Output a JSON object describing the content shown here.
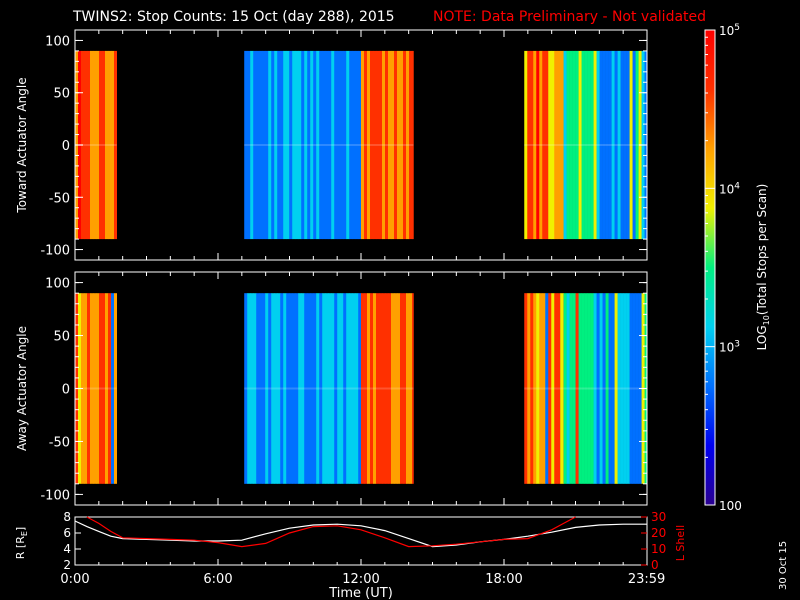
{
  "title": {
    "main": "TWINS2: Stop Counts: 15 Oct (day 288), 2015",
    "note": "NOTE: Data Preliminary - Not validated",
    "note_color": "#ff0000"
  },
  "stamp": "30 Oct 15",
  "chart_data": [
    {
      "type": "heatmap",
      "panel": "toward",
      "ylabel": "Toward Actuator Angle",
      "xlim": [
        0,
        24
      ],
      "ylim": [
        -110,
        110
      ],
      "yticks": [
        100,
        50,
        0,
        -50,
        -100
      ],
      "data_ylim": [
        -90,
        90
      ],
      "data_blocks": [
        {
          "start_hour": 0.0,
          "end_hour": 1.75,
          "level": "high-variable"
        },
        {
          "start_hour": 7.1,
          "end_hour": 12.0,
          "level": "low"
        },
        {
          "start_hour": 12.0,
          "end_hour": 14.2,
          "level": "high"
        },
        {
          "start_hour": 18.85,
          "end_hour": 20.5,
          "level": "high-variable"
        },
        {
          "start_hour": 20.5,
          "end_hour": 24.0,
          "level": "medium-low"
        }
      ]
    },
    {
      "type": "heatmap",
      "panel": "away",
      "ylabel": "Away Actuator Angle",
      "xlim": [
        0,
        24
      ],
      "ylim": [
        -110,
        110
      ],
      "yticks": [
        100,
        50,
        0,
        -50,
        -100
      ],
      "data_ylim": [
        -90,
        90
      ],
      "data_blocks": [
        {
          "start_hour": 0.0,
          "end_hour": 1.75,
          "level": "high-variable"
        },
        {
          "start_hour": 7.1,
          "end_hour": 12.0,
          "level": "low"
        },
        {
          "start_hour": 12.0,
          "end_hour": 14.2,
          "level": "high"
        },
        {
          "start_hour": 18.85,
          "end_hour": 20.5,
          "level": "high-variable"
        },
        {
          "start_hour": 20.5,
          "end_hour": 24.0,
          "level": "medium-low"
        }
      ]
    },
    {
      "type": "line",
      "panel": "orbit",
      "ylabel_left": "R [R",
      "ylabel_left_sub": "E",
      "ylabel_left_end": "]",
      "ylabel_right": "L Shell",
      "ylim_left": [
        2,
        8
      ],
      "yticks_left": [
        8,
        6,
        4,
        2
      ],
      "ylim_right": [
        0,
        30
      ],
      "yticks_right": [
        30,
        20,
        10,
        0
      ],
      "xlabel": "Time (UT)",
      "xticks": [
        "0:00",
        "6:00",
        "12:00",
        "18:00",
        "23:59"
      ],
      "xtick_hours": [
        0,
        6,
        12,
        18,
        23.983
      ],
      "series": [
        {
          "color": "#ffffff",
          "axis": "left",
          "x": [
            0,
            0.5,
            1,
            1.5,
            2,
            3,
            4,
            5,
            6,
            7,
            8,
            9,
            10,
            11,
            12,
            13,
            14,
            15,
            16,
            17,
            18,
            19,
            20,
            21,
            22,
            23,
            24
          ],
          "y": [
            7.5,
            6.8,
            6.2,
            5.6,
            5.3,
            5.2,
            5.1,
            5.0,
            5.0,
            5.1,
            5.9,
            6.6,
            7.0,
            7.1,
            6.9,
            6.3,
            5.3,
            4.3,
            4.5,
            4.9,
            5.2,
            5.6,
            6.1,
            6.7,
            7.0,
            7.1,
            7.1
          ]
        },
        {
          "color": "#ff0000",
          "axis": "right",
          "x": [
            0.5,
            1,
            1.5,
            2,
            3,
            4,
            5,
            6,
            7,
            8,
            9,
            10,
            11,
            12,
            13,
            14,
            15,
            16,
            17,
            18,
            19,
            20,
            20.5,
            21
          ],
          "y": [
            30,
            26,
            21,
            17,
            16.5,
            16,
            15.5,
            14,
            11.5,
            13.5,
            20,
            24,
            24.5,
            22,
            17,
            11.5,
            12,
            13,
            14.5,
            16,
            16.5,
            22,
            26,
            30
          ]
        }
      ]
    }
  ],
  "colorbar": {
    "label": "LOG10(Total Stops per Scan)",
    "label_pre": "LOG",
    "label_sub": "10",
    "label_post": "(Total Stops per Scan)",
    "scale": "log",
    "range": [
      100,
      100000
    ],
    "ticks": [
      {
        "value": 100000,
        "base": "10",
        "exp": "5"
      },
      {
        "value": 10000,
        "base": "10",
        "exp": "4"
      },
      {
        "value": 1000,
        "base": "10",
        "exp": "3"
      },
      {
        "value": 100,
        "base": "100",
        "exp": ""
      }
    ],
    "colors": [
      "#2a0090",
      "#0000f0",
      "#0070ff",
      "#00d0f0",
      "#00f080",
      "#f0f000",
      "#ffa000",
      "#ff3000",
      "#ff0000"
    ]
  }
}
